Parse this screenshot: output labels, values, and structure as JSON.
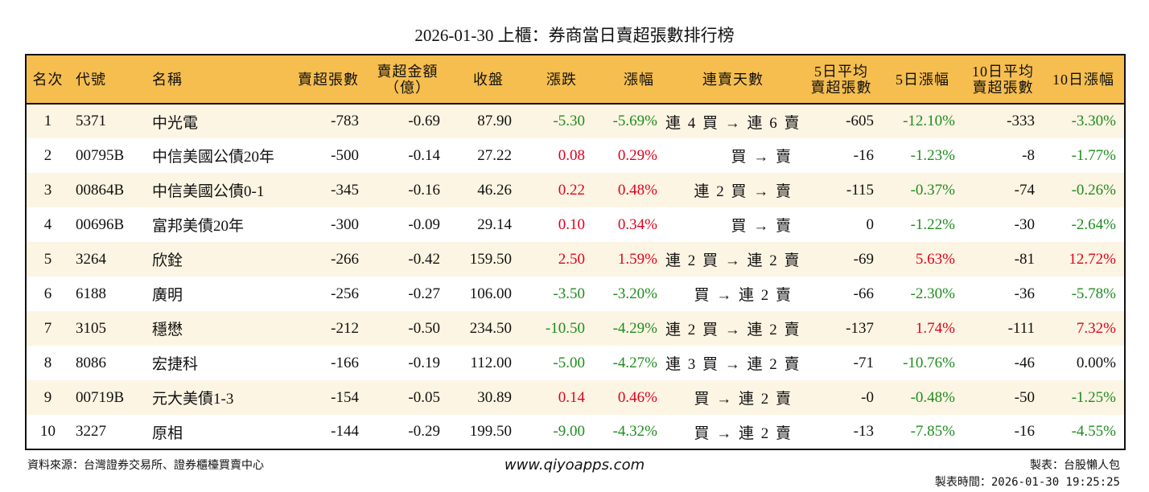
{
  "title": "2026-01-30 上櫃：券商當日賣超張數排行榜",
  "colors": {
    "header_bg": "#F6BE4F",
    "row_alt_bg": "#FDF5E3",
    "up": "#E0001B",
    "down": "#1E8C1E"
  },
  "headers": [
    "名次",
    "代號",
    "名稱",
    "賣超張數",
    "賣超金額\n（億）",
    "收盤",
    "漲跌",
    "漲幅",
    "連賣天數",
    "5日平均\n賣超張數",
    "5日漲幅",
    "10日平均\n賣超張數",
    "10日漲幅"
  ],
  "rows": [
    {
      "rank": "1",
      "code": "5371",
      "name": "中光電",
      "sell": "-783",
      "amount": "-0.69",
      "close": "87.90",
      "chg": "-5.30",
      "pct": "-5.69%",
      "streak": "連 4 買 → 連 6 賣",
      "avg5": "-605",
      "pct5": "-12.10%",
      "avg10": "-333",
      "pct10": "-3.30%",
      "dir": "down",
      "dir5": "down",
      "dir10": "down"
    },
    {
      "rank": "2",
      "code": "00795B",
      "name": "中信美國公債20年",
      "sell": "-500",
      "amount": "-0.14",
      "close": "27.22",
      "chg": "0.08",
      "pct": "0.29%",
      "streak": "買 → 賣",
      "avg5": "-16",
      "pct5": "-1.23%",
      "avg10": "-8",
      "pct10": "-1.77%",
      "dir": "up",
      "dir5": "down",
      "dir10": "down"
    },
    {
      "rank": "3",
      "code": "00864B",
      "name": "中信美國公債0-1",
      "sell": "-345",
      "amount": "-0.16",
      "close": "46.26",
      "chg": "0.22",
      "pct": "0.48%",
      "streak": "連 2 買 → 賣",
      "avg5": "-115",
      "pct5": "-0.37%",
      "avg10": "-74",
      "pct10": "-0.26%",
      "dir": "up",
      "dir5": "down",
      "dir10": "down"
    },
    {
      "rank": "4",
      "code": "00696B",
      "name": "富邦美債20年",
      "sell": "-300",
      "amount": "-0.09",
      "close": "29.14",
      "chg": "0.10",
      "pct": "0.34%",
      "streak": "買 → 賣",
      "avg5": "0",
      "pct5": "-1.22%",
      "avg10": "-30",
      "pct10": "-2.64%",
      "dir": "up",
      "dir5": "down",
      "dir10": "down"
    },
    {
      "rank": "5",
      "code": "3264",
      "name": "欣銓",
      "sell": "-266",
      "amount": "-0.42",
      "close": "159.50",
      "chg": "2.50",
      "pct": "1.59%",
      "streak": "連 2 買 → 連 2 賣",
      "avg5": "-69",
      "pct5": "5.63%",
      "avg10": "-81",
      "pct10": "12.72%",
      "dir": "up",
      "dir5": "up",
      "dir10": "up"
    },
    {
      "rank": "6",
      "code": "6188",
      "name": "廣明",
      "sell": "-256",
      "amount": "-0.27",
      "close": "106.00",
      "chg": "-3.50",
      "pct": "-3.20%",
      "streak": "買 → 連 2 賣",
      "avg5": "-66",
      "pct5": "-2.30%",
      "avg10": "-36",
      "pct10": "-5.78%",
      "dir": "down",
      "dir5": "down",
      "dir10": "down"
    },
    {
      "rank": "7",
      "code": "3105",
      "name": "穩懋",
      "sell": "-212",
      "amount": "-0.50",
      "close": "234.50",
      "chg": "-10.50",
      "pct": "-4.29%",
      "streak": "連 2 買 → 連 2 賣",
      "avg5": "-137",
      "pct5": "1.74%",
      "avg10": "-111",
      "pct10": "7.32%",
      "dir": "down",
      "dir5": "up",
      "dir10": "up"
    },
    {
      "rank": "8",
      "code": "8086",
      "name": "宏捷科",
      "sell": "-166",
      "amount": "-0.19",
      "close": "112.00",
      "chg": "-5.00",
      "pct": "-4.27%",
      "streak": "連 3 買 → 連 2 賣",
      "avg5": "-71",
      "pct5": "-10.76%",
      "avg10": "-46",
      "pct10": "0.00%",
      "dir": "down",
      "dir5": "down",
      "dir10": "flat"
    },
    {
      "rank": "9",
      "code": "00719B",
      "name": "元大美債1-3",
      "sell": "-154",
      "amount": "-0.05",
      "close": "30.89",
      "chg": "0.14",
      "pct": "0.46%",
      "streak": "買 → 連 2 賣",
      "avg5": "-0",
      "pct5": "-0.48%",
      "avg10": "-50",
      "pct10": "-1.25%",
      "dir": "up",
      "dir5": "down",
      "dir10": "down"
    },
    {
      "rank": "10",
      "code": "3227",
      "name": "原相",
      "sell": "-144",
      "amount": "-0.29",
      "close": "199.50",
      "chg": "-9.00",
      "pct": "-4.32%",
      "streak": "買 → 連 2 賣",
      "avg5": "-13",
      "pct5": "-7.85%",
      "avg10": "-16",
      "pct10": "-4.55%",
      "dir": "down",
      "dir5": "down",
      "dir10": "down"
    }
  ],
  "footer": {
    "source": "資料來源：台灣證券交易所、證券櫃檯買賣中心",
    "site": "www.qiyoapps.com",
    "maker": "製表：台股懶人包",
    "time": "製表時間：2026-01-30 19:25:25"
  }
}
